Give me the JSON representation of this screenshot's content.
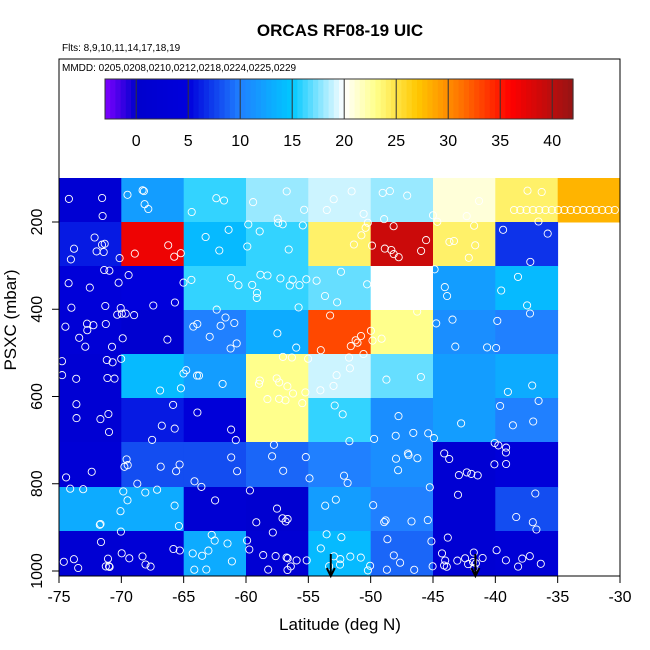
{
  "chart_data": {
    "type": "heatmap",
    "title": "ORCAS RF08-19 UIC",
    "flights_label": "Flts: 8,9,10,11,14,17,18,19",
    "dates_label": "MMDD: 0205,0208,0210,0212,0218,0224,0225,0229",
    "xlabel": "Latitude (deg N)",
    "ylabel": "PSXC (mbar)",
    "xlim": [
      -75,
      -30
    ],
    "ylim": [
      1025,
      100
    ],
    "x_ticks": [
      -75,
      -70,
      -65,
      -60,
      -55,
      -50,
      -45,
      -40,
      -35,
      -30
    ],
    "y_ticks": [
      200,
      400,
      600,
      800,
      1000
    ],
    "colorbar": {
      "range": [
        -3,
        42
      ],
      "ticks": [
        0,
        5,
        10,
        15,
        20,
        25,
        30,
        35,
        40
      ]
    },
    "x_bins": [
      -75,
      -70,
      -65,
      -60,
      -55,
      -50,
      -45,
      -40,
      -35,
      -30
    ],
    "p_bins": [
      140,
      240,
      340,
      440,
      540,
      640,
      740,
      840,
      940,
      1025
    ],
    "values": [
      [
        2,
        12,
        16,
        18,
        19,
        18,
        21,
        24,
        28
      ],
      [
        6,
        37,
        14,
        16,
        24,
        39,
        24,
        7,
        null
      ],
      [
        4,
        5,
        16,
        16,
        17,
        20,
        12,
        14,
        null
      ],
      [
        3,
        1,
        10,
        13,
        33,
        23,
        11,
        10,
        null
      ],
      [
        2,
        14,
        12,
        23,
        19,
        17,
        12,
        13,
        null
      ],
      [
        2,
        6,
        4,
        23,
        16,
        11,
        12,
        10,
        null
      ],
      [
        3,
        8,
        8,
        9,
        10,
        11,
        2,
        4,
        null
      ],
      [
        13,
        13,
        2,
        1,
        12,
        10,
        2,
        8,
        null
      ],
      [
        2,
        3,
        13,
        2,
        14,
        9,
        2,
        3,
        null
      ]
    ],
    "annotations": [
      {
        "type": "arrow",
        "lat": -53.2,
        "label": "down-arrow"
      },
      {
        "type": "arrow",
        "lat": -41.6,
        "label": "down-arrow"
      }
    ]
  }
}
